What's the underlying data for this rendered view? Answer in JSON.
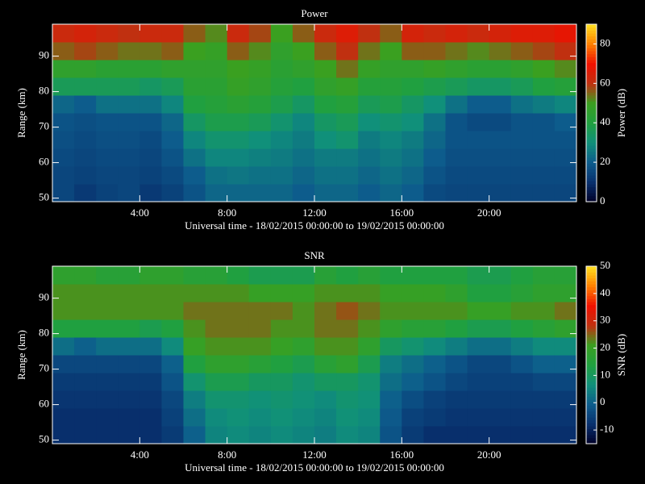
{
  "chart_data": [
    {
      "type": "heatmap",
      "title": "Power",
      "xlabel": "Universal time - 18/02/2015 00:00:00 to 19/02/2015 00:00:00",
      "ylabel": "Range (km)",
      "colorbar_label": "Power (dB)",
      "xlim": [
        0,
        24
      ],
      "xticks": [
        {
          "value": 4,
          "label": "4:00"
        },
        {
          "value": 8,
          "label": "8:00"
        },
        {
          "value": 12,
          "label": "12:00"
        },
        {
          "value": 16,
          "label": "16:00"
        },
        {
          "value": 20,
          "label": "20:00"
        }
      ],
      "ylim": [
        49,
        99
      ],
      "yticks": [
        50,
        60,
        70,
        80,
        90
      ],
      "zlim": [
        0,
        90
      ],
      "zticks": [
        0,
        20,
        40,
        60,
        80
      ],
      "colormap": [
        "#000028",
        "#08306e",
        "#0d5c8c",
        "#10907a",
        "#20a040",
        "#3aa020",
        "#c03010",
        "#f01000",
        "#ff8000",
        "#ffe020"
      ],
      "x": [
        0,
        1,
        2,
        3,
        4,
        5,
        6,
        7,
        8,
        9,
        10,
        11,
        12,
        13,
        14,
        15,
        16,
        17,
        18,
        19,
        20,
        21,
        22,
        23
      ],
      "y": [
        49,
        54,
        59,
        64,
        69,
        74,
        79,
        84,
        89,
        94
      ],
      "z": [
        [
          15,
          12,
          14,
          15,
          12,
          14,
          18,
          22,
          22,
          22,
          22,
          20,
          22,
          22,
          20,
          22,
          20,
          16,
          15,
          15,
          15,
          15,
          15,
          15
        ],
        [
          15,
          14,
          15,
          15,
          14,
          16,
          20,
          24,
          25,
          24,
          24,
          22,
          24,
          24,
          22,
          24,
          22,
          18,
          16,
          16,
          16,
          16,
          16,
          16
        ],
        [
          16,
          15,
          16,
          16,
          15,
          18,
          24,
          28,
          28,
          27,
          26,
          24,
          26,
          26,
          24,
          26,
          24,
          20,
          17,
          17,
          17,
          17,
          17,
          17
        ],
        [
          17,
          16,
          17,
          17,
          16,
          20,
          28,
          32,
          32,
          30,
          28,
          26,
          30,
          32,
          26,
          28,
          26,
          22,
          18,
          18,
          18,
          18,
          18,
          18
        ],
        [
          18,
          17,
          18,
          18,
          18,
          22,
          34,
          38,
          38,
          36,
          32,
          28,
          34,
          36,
          30,
          32,
          30,
          24,
          18,
          16,
          16,
          18,
          18,
          20
        ],
        [
          22,
          20,
          24,
          24,
          24,
          28,
          40,
          42,
          44,
          42,
          38,
          34,
          40,
          42,
          36,
          38,
          34,
          30,
          24,
          20,
          20,
          24,
          26,
          28
        ],
        [
          36,
          36,
          36,
          36,
          34,
          36,
          44,
          44,
          48,
          46,
          42,
          40,
          46,
          48,
          42,
          42,
          40,
          38,
          36,
          34,
          34,
          36,
          40,
          42
        ],
        [
          46,
          46,
          44,
          44,
          44,
          46,
          46,
          46,
          50,
          48,
          44,
          46,
          50,
          54,
          48,
          46,
          46,
          48,
          46,
          44,
          44,
          46,
          50,
          52
        ],
        [
          56,
          58,
          56,
          54,
          54,
          56,
          50,
          48,
          56,
          52,
          46,
          50,
          56,
          60,
          54,
          50,
          56,
          56,
          54,
          52,
          54,
          56,
          58,
          60
        ],
        [
          62,
          64,
          62,
          60,
          62,
          62,
          56,
          52,
          62,
          58,
          50,
          56,
          62,
          66,
          60,
          56,
          64,
          62,
          64,
          62,
          64,
          66,
          66,
          68
        ]
      ]
    },
    {
      "type": "heatmap",
      "title": "SNR",
      "xlabel": "Universal time - 18/02/2015 00:00:00 to 19/02/2015 00:00:00",
      "ylabel": "Range (km)",
      "colorbar_label": "SNR (dB)",
      "xlim": [
        0,
        24
      ],
      "xticks": [
        {
          "value": 4,
          "label": "4:00"
        },
        {
          "value": 8,
          "label": "8:00"
        },
        {
          "value": 12,
          "label": "12:00"
        },
        {
          "value": 16,
          "label": "16:00"
        },
        {
          "value": 20,
          "label": "20:00"
        }
      ],
      "ylim": [
        49,
        99
      ],
      "yticks": [
        50,
        60,
        70,
        80,
        90
      ],
      "zlim": [
        -15,
        50
      ],
      "zticks": [
        -10,
        0,
        10,
        20,
        30,
        40,
        50
      ],
      "colormap": [
        "#000028",
        "#08306e",
        "#0d5c8c",
        "#10907a",
        "#20a040",
        "#3aa020",
        "#c03010",
        "#f01000",
        "#ff8000",
        "#ffe020"
      ],
      "x": [
        0,
        1,
        2,
        3,
        4,
        5,
        6,
        7,
        8,
        9,
        10,
        11,
        12,
        13,
        14,
        15,
        16,
        17,
        18,
        19,
        20,
        21,
        22,
        23
      ],
      "y": [
        49,
        54,
        59,
        64,
        69,
        74,
        79,
        84,
        89,
        94
      ],
      "z": [
        [
          -8,
          -8,
          -8,
          -8,
          -8,
          -6,
          0,
          5,
          6,
          5,
          6,
          5,
          4,
          6,
          5,
          -2,
          -6,
          -8,
          -8,
          -8,
          -8,
          -8,
          -8,
          -8
        ],
        [
          -8,
          -8,
          -8,
          -8,
          -8,
          -5,
          2,
          6,
          7,
          6,
          7,
          6,
          5,
          7,
          6,
          -1,
          -5,
          -6,
          -7,
          -7,
          -7,
          -7,
          -7,
          -7
        ],
        [
          -7,
          -7,
          -7,
          -7,
          -7,
          -4,
          4,
          8,
          8,
          7,
          8,
          7,
          6,
          8,
          7,
          0,
          -3,
          -5,
          -6,
          -6,
          -6,
          -6,
          -6,
          -6
        ],
        [
          -6,
          -6,
          -6,
          -6,
          -6,
          -2,
          8,
          12,
          12,
          10,
          10,
          8,
          10,
          10,
          8,
          2,
          0,
          -2,
          -4,
          -5,
          -5,
          -5,
          -4,
          -4
        ],
        [
          -4,
          -4,
          -4,
          -4,
          -4,
          0,
          14,
          18,
          18,
          16,
          14,
          12,
          16,
          18,
          12,
          4,
          2,
          0,
          -2,
          -4,
          -4,
          -2,
          0,
          0
        ],
        [
          2,
          0,
          2,
          2,
          2,
          6,
          20,
          22,
          22,
          22,
          20,
          18,
          22,
          22,
          18,
          10,
          8,
          6,
          4,
          2,
          2,
          4,
          6,
          6
        ],
        [
          14,
          14,
          14,
          14,
          12,
          14,
          22,
          24,
          24,
          24,
          22,
          22,
          24,
          24,
          22,
          18,
          16,
          16,
          14,
          12,
          12,
          14,
          16,
          18
        ],
        [
          22,
          22,
          22,
          22,
          22,
          22,
          24,
          24,
          24,
          24,
          24,
          22,
          24,
          26,
          24,
          22,
          22,
          22,
          22,
          20,
          20,
          22,
          22,
          24
        ],
        [
          22,
          22,
          22,
          22,
          22,
          22,
          22,
          22,
          22,
          20,
          20,
          20,
          22,
          22,
          22,
          20,
          20,
          20,
          18,
          14,
          14,
          16,
          18,
          18
        ],
        [
          18,
          18,
          16,
          16,
          18,
          18,
          16,
          16,
          14,
          12,
          12,
          12,
          16,
          14,
          16,
          14,
          14,
          14,
          14,
          12,
          12,
          14,
          16,
          16
        ]
      ]
    }
  ]
}
